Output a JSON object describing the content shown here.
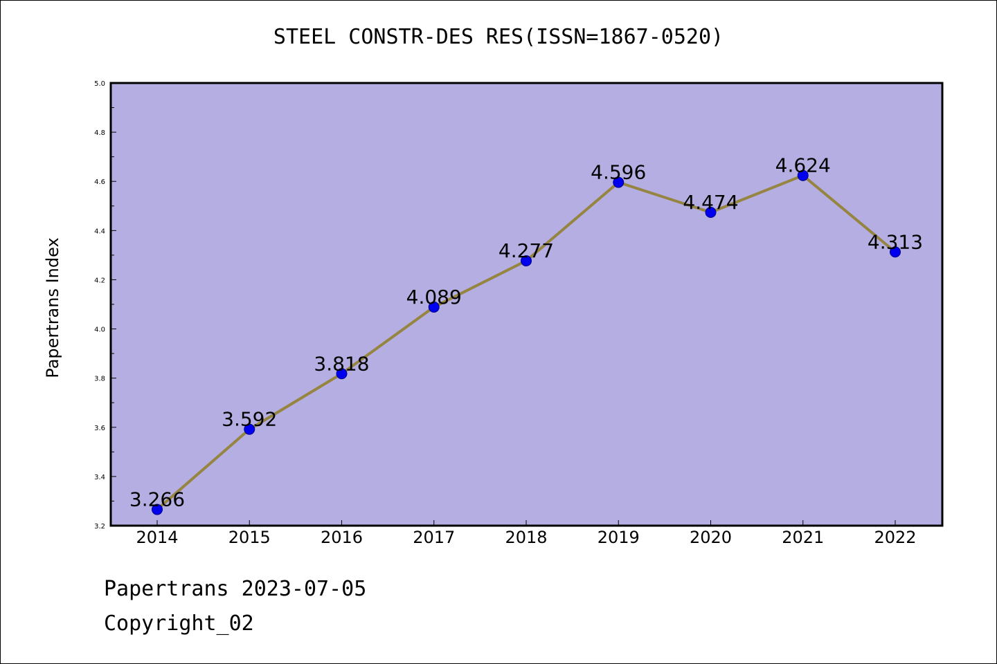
{
  "title": "STEEL CONSTR-DES RES(ISSN=1867-0520)",
  "footer": {
    "date_line": "Papertrans 2023-07-05",
    "copyright_line": "Copyright_02"
  },
  "colors": {
    "plot_background": "#b5aee2",
    "line": "#958540",
    "marker": "#0000ee",
    "marker_edge": "#00008a",
    "axis": "#000000"
  },
  "chart_data": {
    "type": "line",
    "title": "STEEL CONSTR-DES RES(ISSN=1867-0520)",
    "xlabel": "",
    "ylabel": "Papertrans Index",
    "categories": [
      "2014",
      "2015",
      "2016",
      "2017",
      "2018",
      "2019",
      "2020",
      "2021",
      "2022"
    ],
    "values": [
      3.266,
      3.592,
      3.818,
      4.089,
      4.277,
      4.596,
      4.474,
      4.624,
      4.313
    ],
    "data_labels": [
      "3.266",
      "3.592",
      "3.818",
      "4.089",
      "4.277",
      "4.596",
      "4.474",
      "4.624",
      "4.313"
    ],
    "ylim": [
      3.2,
      5.0
    ],
    "yticks": [
      "3.2",
      "3.4",
      "3.6",
      "3.8",
      "4.0",
      "4.2",
      "4.4",
      "4.6",
      "4.8",
      "5.0"
    ],
    "grid": false,
    "legend": "none"
  }
}
